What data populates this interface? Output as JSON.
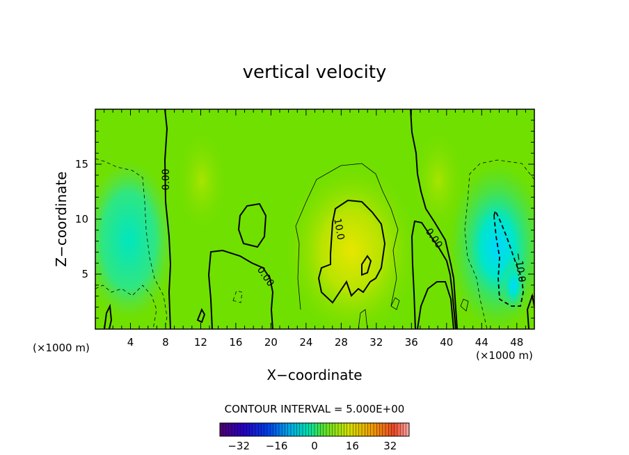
{
  "chart_data": {
    "type": "heatmap",
    "title": "vertical velocity",
    "xlabel": "X−coordinate",
    "ylabel": "Z−coordinate",
    "x_unit_label": "(×1000 m)",
    "xlim": [
      0,
      50
    ],
    "ylim": [
      0,
      20
    ],
    "x_ticks": [
      "4",
      "8",
      "12",
      "16",
      "20",
      "24",
      "28",
      "32",
      "36",
      "40",
      "44",
      "48"
    ],
    "y_ticks": [
      "5",
      "10",
      "15"
    ],
    "contour_interval_text": "CONTOUR INTERVAL = 5.000E+00",
    "contour_labels": [
      "0.00",
      "0.00",
      "10.0",
      "0.00",
      "−10.0"
    ],
    "colorbar": {
      "range": [
        -40,
        40
      ],
      "ticks": [
        "−32",
        "−16",
        "0",
        "16",
        "32"
      ]
    },
    "colors": {
      "background": "#70e000",
      "low": "#00e0e0",
      "high": "#e0e000"
    }
  }
}
